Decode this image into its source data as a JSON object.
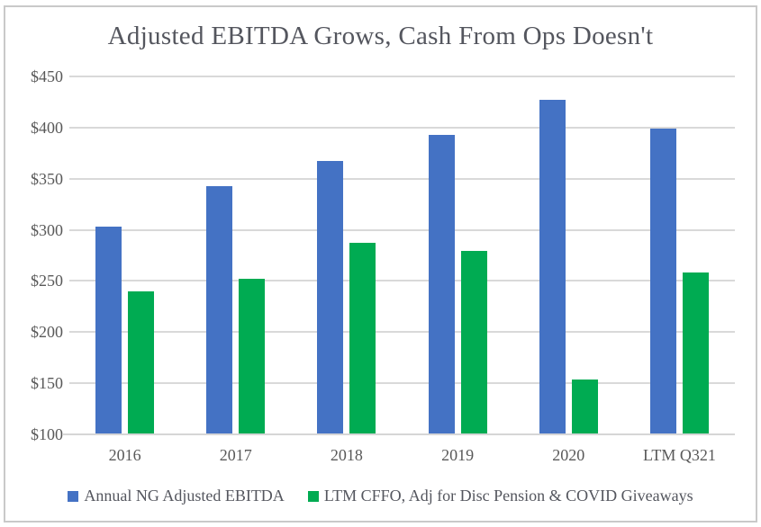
{
  "chart_data": {
    "type": "bar",
    "title": "Adjusted EBITDA Grows, Cash From Ops Doesn't",
    "categories": [
      "2016",
      "2017",
      "2018",
      "2019",
      "2020",
      "LTM Q321"
    ],
    "series": [
      {
        "name": "Annual NG Adjusted EBITDA",
        "color": "#4472C4",
        "values": [
          303,
          343,
          367,
          393,
          427,
          399
        ]
      },
      {
        "name": "LTM CFFO, Adj for Disc Pension & COVID Giveaways",
        "color": "#00AB52",
        "values": [
          240,
          252,
          287,
          279,
          154,
          258
        ]
      }
    ],
    "y_axis": {
      "min": 100,
      "max": 450,
      "step": 50,
      "tick_prefix": "$",
      "tick_labels": [
        "$450",
        "$400",
        "$350",
        "$300",
        "$250",
        "$200",
        "$150",
        "$100"
      ]
    },
    "grid": true,
    "legend_position": "bottom",
    "colors": {
      "gridline": "#D9D9D9",
      "axis_text": "#595959",
      "title_text": "#54565E"
    }
  }
}
